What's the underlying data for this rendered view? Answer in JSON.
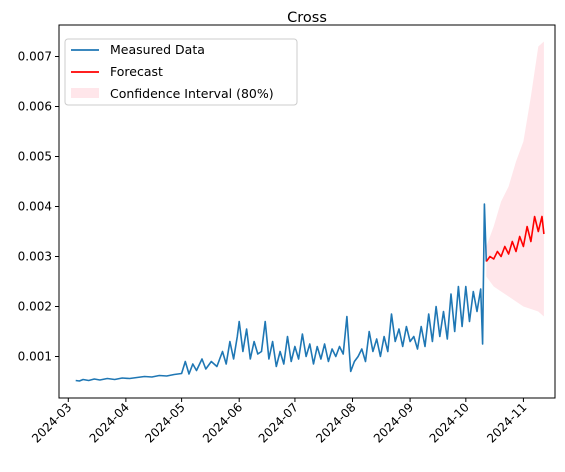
{
  "chart_data": {
    "type": "line",
    "title": "Cross",
    "xlabel": "",
    "ylabel": "",
    "x_ticks": [
      "2024-03",
      "2024-04",
      "2024-05",
      "2024-06",
      "2024-07",
      "2024-08",
      "2024-09",
      "2024-10",
      "2024-11"
    ],
    "y_ticks": [
      "0.001",
      "0.002",
      "0.003",
      "0.004",
      "0.005",
      "0.006",
      "0.007"
    ],
    "xlim": [
      "2024-02-25",
      "2024-11-18"
    ],
    "ylim": [
      0.00017,
      0.00763
    ],
    "grid": false,
    "legend_position": "top-left",
    "series": [
      {
        "name": "Measured Data",
        "color": "#1f77b4",
        "points": [
          [
            "2024-03-05",
            0.00052
          ],
          [
            "2024-03-07",
            0.00051
          ],
          [
            "2024-03-09",
            0.00054
          ],
          [
            "2024-03-12",
            0.00052
          ],
          [
            "2024-03-15",
            0.00055
          ],
          [
            "2024-03-18",
            0.00053
          ],
          [
            "2024-03-22",
            0.00056
          ],
          [
            "2024-03-26",
            0.00054
          ],
          [
            "2024-03-30",
            0.00057
          ],
          [
            "2024-04-03",
            0.00056
          ],
          [
            "2024-04-07",
            0.00058
          ],
          [
            "2024-04-11",
            0.0006
          ],
          [
            "2024-04-15",
            0.00059
          ],
          [
            "2024-04-19",
            0.00062
          ],
          [
            "2024-04-23",
            0.00061
          ],
          [
            "2024-04-27",
            0.00064
          ],
          [
            "2024-05-01",
            0.00066
          ],
          [
            "2024-05-03",
            0.0009
          ],
          [
            "2024-05-05",
            0.00065
          ],
          [
            "2024-05-07",
            0.00085
          ],
          [
            "2024-05-09",
            0.00072
          ],
          [
            "2024-05-12",
            0.00095
          ],
          [
            "2024-05-14",
            0.00075
          ],
          [
            "2024-05-17",
            0.0009
          ],
          [
            "2024-05-20",
            0.0008
          ],
          [
            "2024-05-23",
            0.0011
          ],
          [
            "2024-05-25",
            0.00085
          ],
          [
            "2024-05-27",
            0.0013
          ],
          [
            "2024-05-29",
            0.00095
          ],
          [
            "2024-05-31",
            0.0014
          ],
          [
            "2024-06-01",
            0.0017
          ],
          [
            "2024-06-03",
            0.0011
          ],
          [
            "2024-06-05",
            0.00155
          ],
          [
            "2024-06-07",
            0.00095
          ],
          [
            "2024-06-09",
            0.0013
          ],
          [
            "2024-06-11",
            0.00105
          ],
          [
            "2024-06-13",
            0.0011
          ],
          [
            "2024-06-15",
            0.0017
          ],
          [
            "2024-06-17",
            0.00095
          ],
          [
            "2024-06-19",
            0.0013
          ],
          [
            "2024-06-21",
            0.0008
          ],
          [
            "2024-06-23",
            0.0011
          ],
          [
            "2024-06-25",
            0.00085
          ],
          [
            "2024-06-27",
            0.0014
          ],
          [
            "2024-06-29",
            0.0009
          ],
          [
            "2024-07-01",
            0.0012
          ],
          [
            "2024-07-03",
            0.00095
          ],
          [
            "2024-07-05",
            0.00145
          ],
          [
            "2024-07-07",
            0.001
          ],
          [
            "2024-07-09",
            0.00125
          ],
          [
            "2024-07-11",
            0.00085
          ],
          [
            "2024-07-13",
            0.0012
          ],
          [
            "2024-07-15",
            0.00095
          ],
          [
            "2024-07-17",
            0.00125
          ],
          [
            "2024-07-19",
            0.0009
          ],
          [
            "2024-07-21",
            0.00115
          ],
          [
            "2024-07-23",
            0.001
          ],
          [
            "2024-07-25",
            0.0012
          ],
          [
            "2024-07-27",
            0.00105
          ],
          [
            "2024-07-29",
            0.0018
          ],
          [
            "2024-07-31",
            0.0007
          ],
          [
            "2024-08-02",
            0.0009
          ],
          [
            "2024-08-04",
            0.001
          ],
          [
            "2024-08-06",
            0.00115
          ],
          [
            "2024-08-08",
            0.0009
          ],
          [
            "2024-08-10",
            0.0015
          ],
          [
            "2024-08-12",
            0.0011
          ],
          [
            "2024-08-14",
            0.00135
          ],
          [
            "2024-08-16",
            0.001
          ],
          [
            "2024-08-18",
            0.0014
          ],
          [
            "2024-08-20",
            0.0011
          ],
          [
            "2024-08-22",
            0.00185
          ],
          [
            "2024-08-24",
            0.0013
          ],
          [
            "2024-08-26",
            0.00155
          ],
          [
            "2024-08-28",
            0.0012
          ],
          [
            "2024-08-30",
            0.0016
          ],
          [
            "2024-09-01",
            0.0013
          ],
          [
            "2024-09-03",
            0.0014
          ],
          [
            "2024-09-05",
            0.00115
          ],
          [
            "2024-09-07",
            0.0016
          ],
          [
            "2024-09-09",
            0.0012
          ],
          [
            "2024-09-11",
            0.00185
          ],
          [
            "2024-09-13",
            0.0013
          ],
          [
            "2024-09-15",
            0.002
          ],
          [
            "2024-09-17",
            0.0014
          ],
          [
            "2024-09-19",
            0.0019
          ],
          [
            "2024-09-21",
            0.00135
          ],
          [
            "2024-09-23",
            0.00225
          ],
          [
            "2024-09-25",
            0.0015
          ],
          [
            "2024-09-27",
            0.0024
          ],
          [
            "2024-09-29",
            0.0016
          ],
          [
            "2024-10-01",
            0.0024
          ],
          [
            "2024-10-03",
            0.0017
          ],
          [
            "2024-10-05",
            0.0023
          ],
          [
            "2024-10-07",
            0.0019
          ],
          [
            "2024-10-09",
            0.00235
          ],
          [
            "2024-10-10",
            0.00125
          ],
          [
            "2024-10-11",
            0.00405
          ],
          [
            "2024-10-12",
            0.0029
          ]
        ]
      },
      {
        "name": "Forecast",
        "color": "#ff0000",
        "points": [
          [
            "2024-10-12",
            0.0029
          ],
          [
            "2024-10-14",
            0.003
          ],
          [
            "2024-10-16",
            0.00295
          ],
          [
            "2024-10-18",
            0.0031
          ],
          [
            "2024-10-20",
            0.003
          ],
          [
            "2024-10-22",
            0.0032
          ],
          [
            "2024-10-24",
            0.00305
          ],
          [
            "2024-10-26",
            0.0033
          ],
          [
            "2024-10-28",
            0.0031
          ],
          [
            "2024-10-30",
            0.0034
          ],
          [
            "2024-11-01",
            0.0032
          ],
          [
            "2024-11-03",
            0.0036
          ],
          [
            "2024-11-05",
            0.0033
          ],
          [
            "2024-11-07",
            0.0038
          ],
          [
            "2024-11-09",
            0.0035
          ],
          [
            "2024-11-11",
            0.0038
          ],
          [
            "2024-11-12",
            0.00345
          ]
        ]
      }
    ],
    "confidence_interval": {
      "name": "Confidence Interval (80%)",
      "color": "#ffc0cb",
      "points": [
        [
          "2024-10-12",
          0.0026,
          0.0032
        ],
        [
          "2024-10-16",
          0.0024,
          0.0036
        ],
        [
          "2024-10-20",
          0.0023,
          0.0041
        ],
        [
          "2024-10-24",
          0.0022,
          0.0044
        ],
        [
          "2024-10-28",
          0.0021,
          0.0049
        ],
        [
          "2024-11-01",
          0.002,
          0.0053
        ],
        [
          "2024-11-05",
          0.00195,
          0.0062
        ],
        [
          "2024-11-09",
          0.0019,
          0.0072
        ],
        [
          "2024-11-12",
          0.0018,
          0.0073
        ]
      ]
    }
  }
}
